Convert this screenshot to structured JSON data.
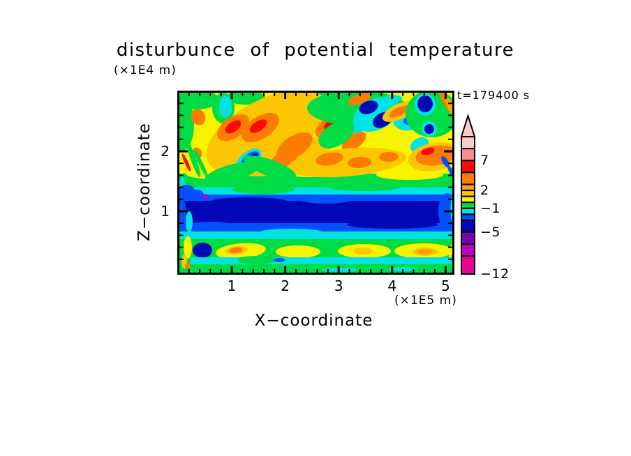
{
  "figure": {
    "title": "disturbunce  of  potential  temperature",
    "y_axis_unit": "(×1E4 m)",
    "x_axis_unit": "(×1E5 m)",
    "x_axis_label": "X−coordinate",
    "y_axis_label": "Z−coordinate",
    "time_annotation": "t=179400 s"
  },
  "chart_data": {
    "type": "heatmap",
    "subtype": "filled-contour",
    "title": "disturbunce of potential temperature",
    "xlabel": "X−coordinate",
    "x_units": "×1E5 m",
    "ylabel": "Z−coordinate",
    "y_units": "×1E4 m",
    "time_annotation": "t=179400 s",
    "time_seconds": 179400,
    "xlim": [
      0,
      5.15
    ],
    "ylim": [
      0,
      3.0
    ],
    "x_ticks": [
      {
        "v": 1,
        "label": "1"
      },
      {
        "v": 2,
        "label": "2"
      },
      {
        "v": 3,
        "label": "3"
      },
      {
        "v": 4,
        "label": "4"
      },
      {
        "v": 5,
        "label": "5"
      }
    ],
    "y_ticks": [
      {
        "v": 1,
        "label": "1"
      },
      {
        "v": 2,
        "label": "2"
      }
    ],
    "minor_tick_step": 0.2,
    "grid": false,
    "colorbar": {
      "orientation": "vertical",
      "position": "right",
      "overflow": "arrow-top",
      "labels": [
        {
          "v": 7,
          "label": "7"
        },
        {
          "v": 2,
          "label": "2"
        },
        {
          "v": -1,
          "label": "−1"
        },
        {
          "v": -5,
          "label": "−5"
        },
        {
          "v": -12,
          "label": "−12"
        }
      ],
      "levels": [
        -12,
        -9,
        -7,
        -5,
        -3,
        -2,
        -1,
        0,
        1,
        2,
        3,
        5,
        7,
        9,
        11
      ],
      "segments": [
        {
          "color": "lightpink",
          "from": 9,
          "to": 11
        },
        {
          "color": "salmon",
          "from": 7,
          "to": 9
        },
        {
          "color": "red",
          "from": 5,
          "to": 7
        },
        {
          "color": "orange",
          "from": 3,
          "to": 5
        },
        {
          "color": "orange2",
          "from": 2,
          "to": 3
        },
        {
          "color": "amber",
          "from": 1,
          "to": 2
        },
        {
          "color": "yellow",
          "from": 0,
          "to": 1
        },
        {
          "color": "green",
          "from": -1,
          "to": 0
        },
        {
          "color": "cyan",
          "from": -2,
          "to": -1
        },
        {
          "color": "blue",
          "from": -3,
          "to": -2
        },
        {
          "color": "navy",
          "from": -5,
          "to": -3
        },
        {
          "color": "purple",
          "from": -7,
          "to": -5
        },
        {
          "color": "magenta",
          "from": -9,
          "to": -7
        },
        {
          "color": "pinkmag",
          "from": -12,
          "to": -9
        }
      ]
    },
    "palette": {
      "yellow": "#f8f400",
      "amber": "#fcc602",
      "orange2": "#fca102",
      "orange": "#fc7c02",
      "red": "#fc0a02",
      "salmon": "#f98c8c",
      "lightpink": "#f9caca",
      "green": "#00dc46",
      "cyan": "#02e2e2",
      "blue": "#0450fc",
      "navy": "#0208b6",
      "purple": "#7a02b2",
      "magenta": "#c002c0",
      "pinkmag": "#ea0294"
    },
    "field_summary": "Turbulent positive disturbance (mostly 0 to +5, streak cores above +5) fills the upper region z≈1.6–3.0×1E4 m with diagonal warm streaks and isolated cold pockets (−5 to −3) near the top around x≈2.7 and x≈3.9–4.1; a strong continuous negative band (−5 to −3) spans all x near z≈0.9–1.2×1E4 m, flanked by −3/−2/−1 layers; below z≈0.8 a weakly negative green layer holds patches of 0 to +3 and a thin −2 to −1 stripe near z≈0.15.",
    "approx_grid": {
      "x_centers": [
        0.25,
        0.75,
        1.25,
        1.75,
        2.25,
        2.75,
        3.25,
        3.75,
        4.25,
        4.75
      ],
      "z_centers": [
        2.9,
        2.6,
        2.3,
        2.0,
        1.7,
        1.5,
        1.3,
        1.1,
        0.95,
        0.75,
        0.55,
        0.35,
        0.15
      ],
      "values": [
        [
          -0.5,
          0.5,
          0.5,
          -0.5,
          0.5,
          -0.5,
          -4.0,
          -0.5,
          0.5,
          0.5
        ],
        [
          0.5,
          4.0,
          4.0,
          1.5,
          0.5,
          -1.5,
          -4.0,
          -0.5,
          1.5,
          4.0
        ],
        [
          4.0,
          1.5,
          4.0,
          4.0,
          0.5,
          -0.5,
          0.5,
          1.5,
          0.5,
          4.0
        ],
        [
          0.5,
          1.5,
          1.5,
          4.0,
          1.5,
          1.5,
          4.0,
          4.0,
          1.5,
          0.5
        ],
        [
          0.5,
          0.5,
          1.5,
          0.5,
          0.5,
          1.5,
          0.5,
          1.5,
          0.5,
          -0.5
        ],
        [
          -0.5,
          -0.5,
          -0.5,
          -0.5,
          -0.5,
          -0.5,
          -0.5,
          -0.5,
          -0.5,
          -0.5
        ],
        [
          -2.5,
          -1.5,
          -1.5,
          -1.5,
          -1.5,
          -1.5,
          -1.5,
          -1.5,
          -1.5,
          -2.5
        ],
        [
          -4.0,
          -4.0,
          -4.0,
          -4.0,
          -4.0,
          -4.0,
          -4.0,
          -4.0,
          -4.0,
          -4.0
        ],
        [
          -4.0,
          -4.0,
          -4.0,
          -4.0,
          -4.0,
          -4.0,
          -4.0,
          -4.0,
          -4.0,
          -2.5
        ],
        [
          -2.5,
          -2.5,
          -2.5,
          -2.5,
          -2.5,
          -2.5,
          -2.5,
          -2.5,
          -2.5,
          -2.5
        ],
        [
          -1.5,
          -0.5,
          -0.5,
          -1.5,
          -0.5,
          -1.5,
          -1.5,
          -0.5,
          -1.5,
          -1.5
        ],
        [
          -0.5,
          0.5,
          4.0,
          0.5,
          0.5,
          -0.5,
          0.5,
          4.0,
          1.5,
          0.5
        ],
        [
          -0.5,
          -1.5,
          -0.5,
          -0.5,
          -1.5,
          -0.5,
          -0.5,
          -0.5,
          -1.5,
          -0.5
        ]
      ]
    },
    "field_blobs": [
      [
        "r",
        0,
        0,
        391,
        258,
        "yellow"
      ],
      [
        "r",
        0,
        116,
        391,
        26,
        "green"
      ],
      [
        "r",
        0,
        136,
        391,
        15,
        "cyan"
      ],
      [
        "r",
        0,
        146,
        391,
        17,
        "blue"
      ],
      [
        "r",
        0,
        155,
        391,
        35,
        "navy"
      ],
      [
        "r",
        0,
        187,
        391,
        15,
        "blue"
      ],
      [
        "r",
        0,
        199,
        391,
        14,
        "cyan"
      ],
      [
        "r",
        0,
        210,
        391,
        48,
        "green"
      ],
      [
        "e",
        55,
        117,
        45,
        7,
        0,
        "yellow"
      ],
      [
        "e",
        185,
        114,
        40,
        7,
        0,
        "yellow"
      ],
      [
        "e",
        330,
        118,
        48,
        7,
        0,
        "yellow"
      ],
      [
        "e",
        120,
        139,
        45,
        6,
        0,
        "green"
      ],
      [
        "e",
        265,
        136,
        50,
        5,
        0,
        "green"
      ],
      [
        "e",
        100,
        156,
        55,
        6,
        0,
        "navy"
      ],
      [
        "e",
        305,
        189,
        65,
        6,
        0,
        "navy"
      ],
      [
        "e",
        210,
        154,
        35,
        5,
        0,
        "blue"
      ],
      [
        "e",
        45,
        190,
        30,
        5,
        0,
        "blue"
      ],
      [
        "e",
        160,
        200,
        45,
        5,
        0,
        "cyan"
      ],
      [
        "e",
        25,
        10,
        32,
        14,
        0,
        "green"
      ],
      [
        "e",
        95,
        7,
        28,
        10,
        0,
        "green"
      ],
      [
        "e",
        5,
        45,
        16,
        38,
        0,
        "green"
      ],
      [
        "e",
        63,
        22,
        16,
        22,
        0,
        "green"
      ],
      [
        "e",
        66,
        20,
        9,
        16,
        0,
        "cyan"
      ],
      [
        "e",
        170,
        20,
        26,
        24,
        0,
        "green"
      ],
      [
        "e",
        170,
        18,
        11,
        14,
        0,
        "cyan"
      ],
      [
        "e",
        210,
        14,
        20,
        18,
        0,
        "green"
      ],
      [
        "e",
        125,
        55,
        95,
        45,
        -28,
        "amber"
      ],
      [
        "e",
        150,
        92,
        70,
        22,
        -15,
        "amber"
      ],
      [
        "e",
        27,
        35,
        10,
        12,
        -20,
        "orange"
      ],
      [
        "e",
        77,
        50,
        26,
        15,
        -35,
        "orange"
      ],
      [
        "e",
        77,
        49,
        13,
        7,
        -35,
        "red"
      ],
      [
        "e",
        116,
        50,
        30,
        16,
        -33,
        "orange"
      ],
      [
        "e",
        113,
        48,
        14,
        7,
        -33,
        "red"
      ],
      [
        "e",
        165,
        77,
        29,
        15,
        -33,
        "orange"
      ],
      [
        "e",
        220,
        47,
        28,
        14,
        -30,
        "orange"
      ],
      [
        "e",
        218,
        45,
        12,
        6,
        -30,
        "red"
      ],
      [
        "e",
        250,
        70,
        20,
        10,
        -35,
        "orange"
      ],
      [
        "e",
        150,
        95,
        24,
        11,
        -30,
        "orange"
      ],
      [
        "e",
        26,
        86,
        6,
        8,
        -30,
        "orange"
      ],
      [
        "e",
        20,
        95,
        4,
        28,
        -20,
        "green"
      ],
      [
        "e",
        31,
        102,
        3,
        24,
        -25,
        "green"
      ],
      [
        "e",
        10,
        100,
        2.5,
        14,
        -25,
        "red"
      ],
      [
        "e",
        4,
        133,
        4,
        13,
        0,
        "cyan"
      ],
      [
        "e",
        10,
        141,
        12,
        9,
        0,
        "blue"
      ],
      [
        "e",
        24,
        146,
        11,
        7,
        0,
        "blue"
      ],
      [
        "e",
        37,
        149,
        3,
        4,
        0,
        "magenta"
      ],
      [
        "e",
        255,
        22,
        72,
        25,
        0,
        "green"
      ],
      [
        "e",
        247,
        52,
        18,
        6,
        0,
        "cyan"
      ],
      [
        "e",
        282,
        31,
        35,
        22,
        -25,
        "cyan"
      ],
      [
        "e",
        271,
        21,
        14,
        9,
        -20,
        "navy"
      ],
      [
        "e",
        291,
        39,
        15,
        10,
        -30,
        "navy"
      ],
      [
        "e",
        307,
        8,
        12,
        5,
        0,
        "cyan"
      ],
      [
        "e",
        225,
        60,
        28,
        16,
        -30,
        "green"
      ],
      [
        "e",
        328,
        38,
        22,
        16,
        -10,
        "cyan"
      ],
      [
        "e",
        327,
        41,
        6,
        5,
        0,
        "blue"
      ],
      [
        "e",
        240,
        100,
        85,
        20,
        -5,
        "amber"
      ],
      [
        "e",
        215,
        95,
        20,
        9,
        -10,
        "orange"
      ],
      [
        "e",
        258,
        100,
        17,
        8,
        -5,
        "orange"
      ],
      [
        "e",
        300,
        92,
        14,
        7,
        0,
        "orange"
      ],
      [
        "e",
        258,
        9,
        18,
        7,
        -20,
        "orange"
      ],
      [
        "e",
        315,
        27,
        26,
        11,
        -25,
        "amber"
      ],
      [
        "e",
        315,
        27,
        16,
        6,
        -25,
        "orange"
      ],
      [
        "e",
        99,
        97,
        22,
        12,
        -40,
        "cyan"
      ],
      [
        "e",
        101,
        96,
        16,
        8,
        -40,
        "blue"
      ],
      [
        "e",
        103,
        95,
        11,
        4.5,
        -40,
        "navy"
      ],
      [
        "e",
        75,
        115,
        40,
        12,
        -15,
        "green"
      ],
      [
        "e",
        130,
        108,
        40,
        12,
        20,
        "green"
      ],
      [
        "e",
        362,
        30,
        38,
        34,
        0,
        "green"
      ],
      [
        "e",
        352,
        17,
        15,
        16,
        0,
        "cyan"
      ],
      [
        "e",
        352,
        16,
        11,
        12,
        0,
        "navy"
      ],
      [
        "e",
        382,
        12,
        5,
        18,
        -28,
        "orange"
      ],
      [
        "e",
        391,
        24,
        5,
        20,
        -28,
        "orange2"
      ],
      [
        "e",
        358,
        52,
        11,
        11,
        0,
        "cyan"
      ],
      [
        "e",
        358,
        52,
        7,
        7,
        0,
        "navy"
      ],
      [
        "e",
        344,
        75,
        14,
        10,
        -30,
        "cyan"
      ],
      [
        "e",
        365,
        92,
        38,
        20,
        -10,
        "amber"
      ],
      [
        "e",
        368,
        90,
        30,
        14,
        -8,
        "orange"
      ],
      [
        "e",
        356,
        84,
        10,
        5,
        -15,
        "red"
      ],
      [
        "e",
        381,
        99,
        4,
        9,
        -30,
        "blue"
      ],
      [
        "e",
        389,
        112,
        3,
        8,
        -30,
        "blue"
      ],
      [
        "e",
        384,
        170,
        13,
        26,
        0,
        "blue"
      ],
      [
        "e",
        392,
        166,
        3.5,
        19,
        0,
        "cyan"
      ],
      [
        "e",
        4,
        175,
        6,
        22,
        0,
        "blue"
      ],
      [
        "e",
        14,
        185,
        5,
        15,
        0,
        "cyan"
      ],
      [
        "e",
        33,
        226,
        14,
        11,
        0,
        "navy"
      ],
      [
        "e",
        12,
        222,
        6,
        16,
        0,
        "yellow"
      ],
      [
        "e",
        7,
        242,
        4,
        10,
        0,
        "amber"
      ],
      [
        "e",
        12,
        248,
        4,
        4,
        0,
        "orange"
      ],
      [
        "e",
        88,
        227,
        36,
        11,
        -5,
        "yellow"
      ],
      [
        "e",
        82,
        226,
        16,
        6,
        -5,
        "amber"
      ],
      [
        "e",
        81,
        226,
        10,
        4,
        -5,
        "orange"
      ],
      [
        "e",
        170,
        228,
        32,
        9,
        0,
        "yellow"
      ],
      [
        "e",
        265,
        227,
        38,
        10,
        0,
        "yellow"
      ],
      [
        "e",
        263,
        227,
        14,
        5,
        0,
        "amber"
      ],
      [
        "e",
        350,
        227,
        42,
        11,
        0,
        "yellow"
      ],
      [
        "e",
        352,
        228,
        18,
        6,
        0,
        "amber"
      ],
      [
        "e",
        352,
        228,
        11,
        4,
        0,
        "orange2"
      ],
      [
        "e",
        392,
        231,
        6,
        14,
        0,
        "yellow"
      ],
      [
        "e",
        393,
        237,
        4,
        8,
        0,
        "orange"
      ],
      [
        "r",
        16,
        236,
        375,
        10,
        "cyan"
      ],
      [
        "e",
        110,
        240,
        28,
        6,
        0,
        "green"
      ],
      [
        "e",
        143,
        240,
        8,
        3,
        0,
        "blue"
      ],
      [
        "e",
        230,
        254,
        25,
        3,
        0,
        "cyan"
      ],
      [
        "e",
        320,
        253,
        20,
        3,
        0,
        "cyan"
      ]
    ]
  },
  "colors": {
    "background": "#ffffff",
    "frame": "#000000",
    "text": "#000000"
  }
}
